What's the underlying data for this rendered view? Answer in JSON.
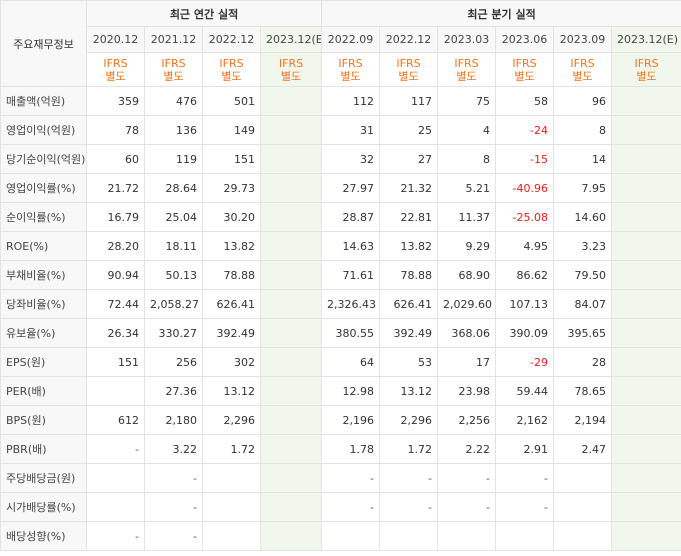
{
  "table": {
    "row_header_label": "주요재무정보",
    "annual_group_label": "최근 연간 실적",
    "quarterly_group_label": "최근 분기 실적",
    "columns": [
      {
        "date": "2020.12",
        "ifrs": "IFRS",
        "basis": "별도",
        "estimate": false
      },
      {
        "date": "2021.12",
        "ifrs": "IFRS",
        "basis": "별도",
        "estimate": false
      },
      {
        "date": "2022.12",
        "ifrs": "IFRS",
        "basis": "별도",
        "estimate": false
      },
      {
        "date": "2023.12(E)",
        "ifrs": "IFRS",
        "basis": "별도",
        "estimate": true
      },
      {
        "date": "2022.09",
        "ifrs": "IFRS",
        "basis": "별도",
        "estimate": false
      },
      {
        "date": "2022.12",
        "ifrs": "IFRS",
        "basis": "별도",
        "estimate": false
      },
      {
        "date": "2023.03",
        "ifrs": "IFRS",
        "basis": "별도",
        "estimate": false
      },
      {
        "date": "2023.06",
        "ifrs": "IFRS",
        "basis": "별도",
        "estimate": false
      },
      {
        "date": "2023.09",
        "ifrs": "IFRS",
        "basis": "별도",
        "estimate": false
      },
      {
        "date": "2023.12(E)",
        "ifrs": "IFRS",
        "basis": "별도",
        "estimate": true
      }
    ],
    "rows": [
      {
        "label": "매출액(억원)",
        "group_start": false,
        "values": [
          "359",
          "476",
          "501",
          "",
          "112",
          "117",
          "75",
          "58",
          "96",
          ""
        ]
      },
      {
        "label": "영업이익(억원)",
        "group_start": false,
        "values": [
          "78",
          "136",
          "149",
          "",
          "31",
          "25",
          "4",
          "-24",
          "8",
          ""
        ]
      },
      {
        "label": "당기순이익(억원)",
        "group_start": false,
        "values": [
          "60",
          "119",
          "151",
          "",
          "32",
          "27",
          "8",
          "-15",
          "14",
          ""
        ]
      },
      {
        "label": "영업이익률(%)",
        "group_start": true,
        "values": [
          "21.72",
          "28.64",
          "29.73",
          "",
          "27.97",
          "21.32",
          "5.21",
          "-40.96",
          "7.95",
          ""
        ]
      },
      {
        "label": "순이익률(%)",
        "group_start": false,
        "values": [
          "16.79",
          "25.04",
          "30.20",
          "",
          "28.87",
          "22.81",
          "11.37",
          "-25.08",
          "14.60",
          ""
        ]
      },
      {
        "label": "ROE(%)",
        "group_start": false,
        "values": [
          "28.20",
          "18.11",
          "13.82",
          "",
          "14.63",
          "13.82",
          "9.29",
          "4.95",
          "3.23",
          ""
        ]
      },
      {
        "label": "부채비율(%)",
        "group_start": true,
        "values": [
          "90.94",
          "50.13",
          "78.88",
          "",
          "71.61",
          "78.88",
          "68.90",
          "86.62",
          "79.50",
          ""
        ]
      },
      {
        "label": "당좌비율(%)",
        "group_start": false,
        "values": [
          "72.44",
          "2,058.27",
          "626.41",
          "",
          "2,326.43",
          "626.41",
          "2,029.60",
          "107.13",
          "84.07",
          ""
        ]
      },
      {
        "label": "유보율(%)",
        "group_start": false,
        "values": [
          "26.34",
          "330.27",
          "392.49",
          "",
          "380.55",
          "392.49",
          "368.06",
          "390.09",
          "395.65",
          ""
        ]
      },
      {
        "label": "EPS(원)",
        "group_start": true,
        "values": [
          "151",
          "256",
          "302",
          "",
          "64",
          "53",
          "17",
          "-29",
          "28",
          ""
        ]
      },
      {
        "label": "PER(배)",
        "group_start": false,
        "values": [
          "",
          "27.36",
          "13.12",
          "",
          "12.98",
          "13.12",
          "23.98",
          "59.44",
          "78.65",
          ""
        ]
      },
      {
        "label": "BPS(원)",
        "group_start": false,
        "values": [
          "612",
          "2,180",
          "2,296",
          "",
          "2,196",
          "2,296",
          "2,256",
          "2,162",
          "2,194",
          ""
        ]
      },
      {
        "label": "PBR(배)",
        "group_start": false,
        "values": [
          "-",
          "3.22",
          "1.72",
          "",
          "1.78",
          "1.72",
          "2.22",
          "2.91",
          "2.47",
          ""
        ]
      },
      {
        "label": "주당배당금(원)",
        "group_start": true,
        "values": [
          "",
          "-",
          "",
          "",
          "-",
          "-",
          "-",
          "-",
          "",
          ""
        ]
      },
      {
        "label": "시가배당률(%)",
        "group_start": false,
        "values": [
          "",
          "-",
          "",
          "",
          "-",
          "-",
          "-",
          "-",
          "",
          ""
        ]
      },
      {
        "label": "배당성향(%)",
        "group_start": false,
        "values": [
          "-",
          "-",
          "",
          "",
          "",
          "",
          "",
          "",
          "",
          ""
        ]
      }
    ]
  },
  "colors": {
    "negative": "#e0211b",
    "ifrs_label": "#f0731e",
    "estimate_bg": "#f2f7ee",
    "header_bg": "#f8f8f8"
  }
}
